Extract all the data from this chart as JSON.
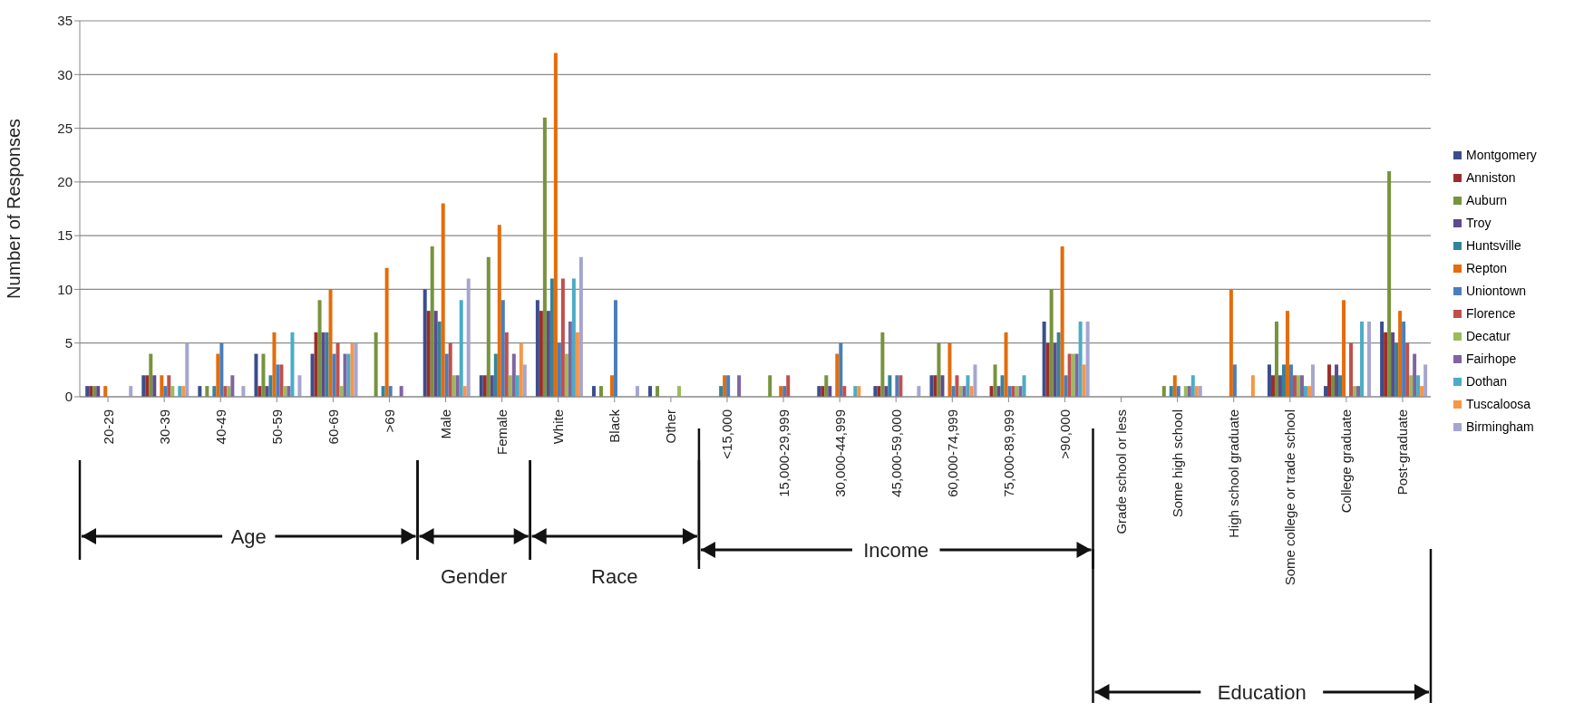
{
  "chart_data": {
    "type": "bar",
    "ylabel": "Number of Responses",
    "categories": [
      "20-29",
      "30-39",
      "40-49",
      "50-59",
      "60-69",
      ">69",
      "Male",
      "Female",
      "White",
      "Black",
      "Other",
      "<15,000",
      "15,000-29,999",
      "30,000-44,999",
      "45,000-59,000",
      "60,000-74,999",
      "75,000-89,999",
      ">90,000",
      "Grade school or less",
      "Some high school",
      "High school graduate",
      "Some college or trade school",
      "College graduate",
      "Post-graduate"
    ],
    "series": [
      {
        "name": "Montgomery",
        "color": "#3b4e8c",
        "values": [
          1,
          2,
          1,
          4,
          4,
          0,
          10,
          2,
          9,
          1,
          1,
          0,
          0,
          1,
          1,
          2,
          0,
          7,
          0,
          0,
          0,
          3,
          1,
          7
        ]
      },
      {
        "name": "Anniston",
        "color": "#9b2d2a",
        "values": [
          1,
          2,
          0,
          1,
          6,
          0,
          8,
          2,
          8,
          0,
          0,
          0,
          0,
          1,
          1,
          2,
          1,
          5,
          0,
          0,
          0,
          2,
          3,
          6
        ]
      },
      {
        "name": "Auburn",
        "color": "#77933c",
        "values": [
          1,
          4,
          1,
          4,
          9,
          6,
          14,
          13,
          26,
          1,
          1,
          0,
          2,
          2,
          6,
          5,
          3,
          10,
          0,
          1,
          0,
          7,
          2,
          21
        ]
      },
      {
        "name": "Troy",
        "color": "#5f4a8b",
        "values": [
          1,
          2,
          0,
          1,
          6,
          0,
          8,
          2,
          8,
          0,
          0,
          0,
          0,
          1,
          1,
          2,
          1,
          5,
          0,
          0,
          0,
          2,
          3,
          6
        ]
      },
      {
        "name": "Huntsville",
        "color": "#31859c",
        "values": [
          0,
          0,
          1,
          2,
          6,
          1,
          7,
          4,
          11,
          0,
          0,
          1,
          0,
          0,
          2,
          0,
          2,
          6,
          0,
          1,
          0,
          3,
          2,
          5
        ]
      },
      {
        "name": "Repton",
        "color": "#e46c0a",
        "values": [
          1,
          2,
          4,
          6,
          10,
          12,
          18,
          16,
          32,
          2,
          0,
          2,
          1,
          4,
          0,
          5,
          6,
          14,
          0,
          2,
          10,
          8,
          9,
          8
        ]
      },
      {
        "name": "Uniontown",
        "color": "#4a7ebb",
        "values": [
          0,
          1,
          5,
          3,
          4,
          1,
          4,
          9,
          5,
          9,
          0,
          2,
          1,
          5,
          2,
          1,
          1,
          2,
          0,
          1,
          3,
          3,
          0,
          7
        ]
      },
      {
        "name": "Florence",
        "color": "#c0504d",
        "values": [
          0,
          2,
          1,
          3,
          5,
          0,
          5,
          6,
          11,
          0,
          0,
          0,
          2,
          1,
          2,
          2,
          1,
          4,
          0,
          0,
          0,
          2,
          5,
          5
        ]
      },
      {
        "name": "Decatur",
        "color": "#9bbb59",
        "values": [
          0,
          1,
          1,
          1,
          1,
          0,
          2,
          2,
          4,
          0,
          1,
          0,
          0,
          0,
          0,
          1,
          1,
          4,
          0,
          1,
          0,
          2,
          1,
          2
        ]
      },
      {
        "name": "Fairhope",
        "color": "#8064a2",
        "values": [
          0,
          0,
          2,
          1,
          4,
          1,
          2,
          4,
          7,
          0,
          0,
          2,
          0,
          0,
          0,
          1,
          1,
          4,
          0,
          1,
          0,
          2,
          1,
          4
        ]
      },
      {
        "name": "Dothan",
        "color": "#4bacc6",
        "values": [
          0,
          1,
          0,
          6,
          4,
          0,
          9,
          2,
          11,
          0,
          0,
          0,
          0,
          1,
          0,
          2,
          2,
          7,
          0,
          2,
          0,
          1,
          7,
          2
        ]
      },
      {
        "name": "Tuscaloosa",
        "color": "#f79646",
        "values": [
          0,
          1,
          0,
          0,
          5,
          0,
          1,
          5,
          6,
          0,
          0,
          0,
          0,
          1,
          0,
          1,
          0,
          3,
          0,
          1,
          2,
          1,
          0,
          1
        ]
      },
      {
        "name": "Birmingham",
        "color": "#a5a5d0",
        "values": [
          1,
          5,
          1,
          2,
          5,
          0,
          11,
          3,
          13,
          1,
          0,
          0,
          0,
          0,
          1,
          3,
          0,
          7,
          0,
          1,
          0,
          3,
          7,
          3
        ]
      }
    ],
    "ylim": [
      0,
      35
    ],
    "yticks": [
      0,
      5,
      10,
      15,
      20,
      25,
      30,
      35
    ],
    "grid": "y",
    "legend": "right",
    "annotations": [
      "Age",
      "Gender",
      "Race",
      "Income",
      "Education"
    ]
  }
}
